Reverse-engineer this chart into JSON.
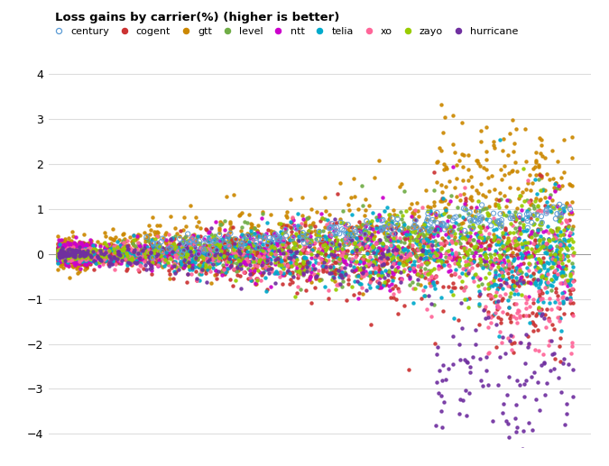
{
  "title": "Loss gains by carrier(%) (higher is better)",
  "carriers": [
    {
      "name": "century",
      "color": "#5B9BD5",
      "open": true
    },
    {
      "name": "cogent",
      "color": "#CC3333",
      "open": false
    },
    {
      "name": "gtt",
      "color": "#CC8800",
      "open": false
    },
    {
      "name": "level",
      "color": "#70AD47",
      "open": false
    },
    {
      "name": "ntt",
      "color": "#CC00CC",
      "open": false
    },
    {
      "name": "telia",
      "color": "#00AACC",
      "open": false
    },
    {
      "name": "xo",
      "color": "#FF6699",
      "open": false
    },
    {
      "name": "zayo",
      "color": "#99CC00",
      "open": false
    },
    {
      "name": "hurricane",
      "color": "#7030A0",
      "open": false
    }
  ],
  "ylim": [
    -4.3,
    4.3
  ],
  "yticks": [
    -4,
    -3,
    -2,
    -1,
    0,
    1,
    2,
    3,
    4
  ],
  "background_color": "#ffffff",
  "grid_color": "#dddddd"
}
